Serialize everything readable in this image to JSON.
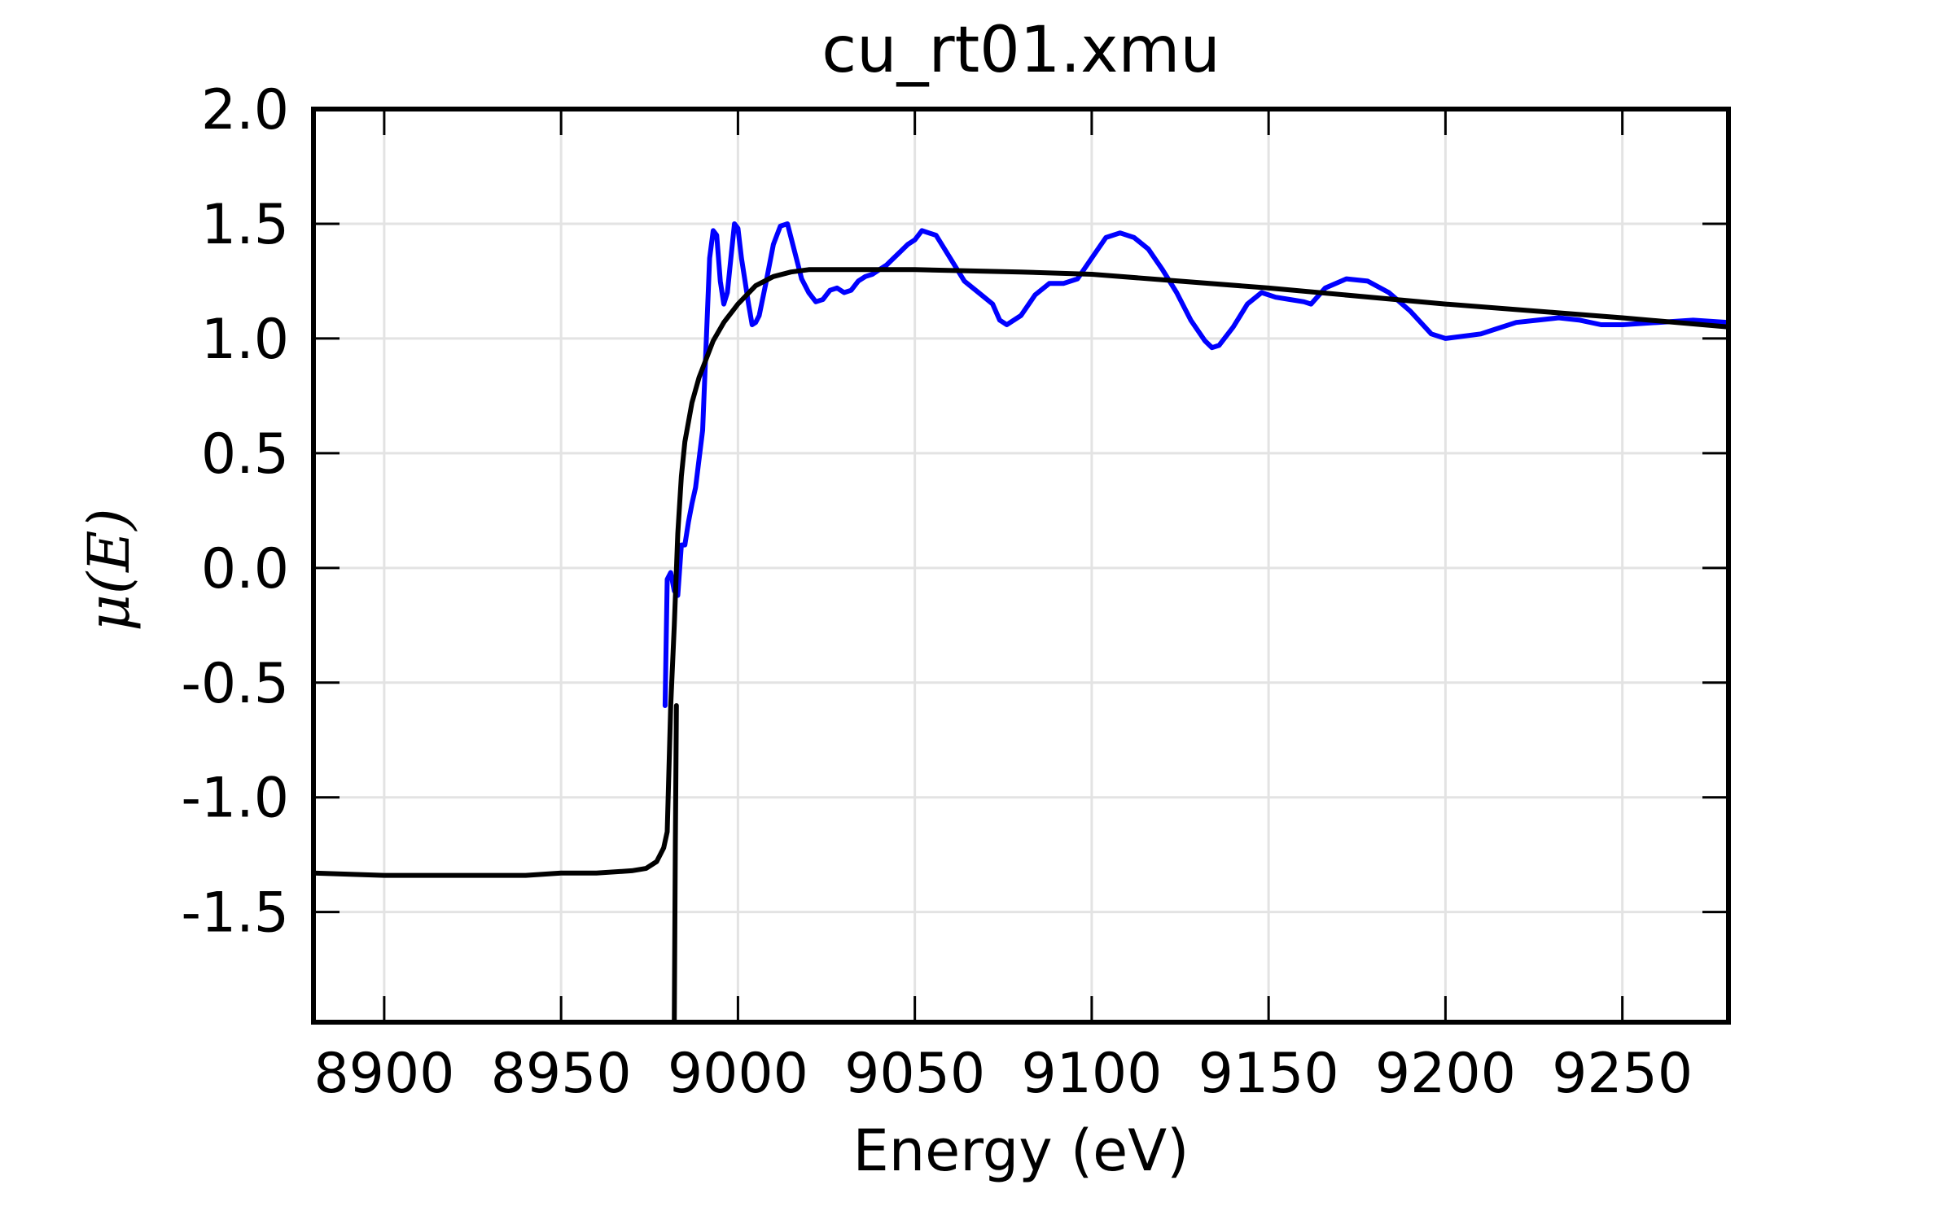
{
  "chart_data": {
    "type": "line",
    "title": "cu_rt01.xmu",
    "xlabel": "Energy (eV)",
    "ylabel": "μ(E)",
    "xlim": [
      8880,
      9280
    ],
    "ylim": [
      -1.98,
      2.0
    ],
    "xticks": [
      8900,
      8950,
      9000,
      9050,
      9100,
      9150,
      9200,
      9250
    ],
    "xtick_labels": [
      "8900",
      "8950",
      "9000",
      "9050",
      "9100",
      "9150",
      "9200",
      "9250"
    ],
    "yticks": [
      2.0,
      1.5,
      1.0,
      0.5,
      0.0,
      -0.5,
      -1.0,
      -1.5
    ],
    "ytick_labels": [
      "2.0",
      "1.5",
      "1.0",
      "0.5",
      "0.0",
      "-0.5",
      "-1.0",
      "-1.5"
    ],
    "grid": true,
    "series": [
      {
        "color": "#0000ff",
        "x": [
          8979.4,
          8980.0,
          8981.0,
          8982.0,
          8983.0,
          8984.0,
          8985.0,
          8986.0,
          8987.0,
          8988.0,
          8990.0,
          8992.0,
          8993.0,
          8994.0,
          8995.0,
          8996.0,
          8997.0,
          8998.0,
          8999.0,
          9000.0,
          9001.0,
          9002.0,
          9003.0,
          9004.0,
          9005.0,
          9006.0,
          9008.0,
          9010.0,
          9012.0,
          9014.0,
          9016.0,
          9018.0,
          9020.0,
          9022.0,
          9024.0,
          9026.0,
          9028.0,
          9030.0,
          9032.0,
          9034.0,
          9036.0,
          9038.0,
          9040.0,
          9042.0,
          9044.0,
          9046.0,
          9048.0,
          9050.0,
          9052.0,
          9056.0,
          9060.0,
          9064.0,
          9068.0,
          9072.0,
          9074.0,
          9076.0,
          9080.0,
          9084.0,
          9088.0,
          9092.0,
          9096.0,
          9100.0,
          9104.0,
          9108.0,
          9112.0,
          9116.0,
          9120.0,
          9124.0,
          9128.0,
          9132.0,
          9134.0,
          9136.0,
          9140.0,
          9144.0,
          9148.0,
          9152.0,
          9156.0,
          9160.0,
          9162.0,
          9166.0,
          9172.0,
          9178.0,
          9184.0,
          9190.0,
          9196.0,
          9200.0,
          9205.0,
          9210.0,
          9214.0,
          9220.0,
          9226.0,
          9232.0,
          9238.0,
          9244.0,
          9250.0,
          9260.0,
          9270.0,
          9280.0
        ],
        "y": [
          -0.6,
          -0.05,
          -0.02,
          -0.1,
          -0.12,
          0.1,
          0.1,
          0.2,
          0.28,
          0.35,
          0.6,
          1.35,
          1.47,
          1.45,
          1.25,
          1.15,
          1.2,
          1.35,
          1.5,
          1.48,
          1.35,
          1.25,
          1.15,
          1.06,
          1.07,
          1.1,
          1.25,
          1.41,
          1.49,
          1.5,
          1.38,
          1.26,
          1.2,
          1.16,
          1.17,
          1.21,
          1.22,
          1.2,
          1.21,
          1.25,
          1.27,
          1.28,
          1.3,
          1.32,
          1.35,
          1.38,
          1.41,
          1.43,
          1.47,
          1.45,
          1.35,
          1.25,
          1.2,
          1.15,
          1.08,
          1.06,
          1.1,
          1.19,
          1.24,
          1.24,
          1.26,
          1.35,
          1.44,
          1.46,
          1.44,
          1.39,
          1.3,
          1.2,
          1.08,
          0.99,
          0.96,
          0.97,
          1.05,
          1.15,
          1.2,
          1.18,
          1.17,
          1.16,
          1.15,
          1.22,
          1.26,
          1.25,
          1.2,
          1.12,
          1.02,
          1.0,
          1.01,
          1.02,
          1.04,
          1.07,
          1.08,
          1.09,
          1.08,
          1.06,
          1.06,
          1.07,
          1.08,
          1.07
        ]
      },
      {
        "color": "#000000",
        "x": [
          8880.0,
          8900.0,
          8920.0,
          8940.0,
          8950.0,
          8960.0,
          8970.0,
          8974.0,
          8977.0,
          8979.0,
          8980.0,
          8981.0,
          8982.0,
          8983.0,
          8984.0,
          8985.0,
          8987.0,
          8989.0,
          8991.0,
          8993.0,
          8996.0,
          9000.0,
          9005.0,
          9010.0,
          9015.0,
          9020.0,
          9030.0,
          9050.0,
          9080.0,
          9100.0,
          9150.0,
          9200.0,
          9250.0,
          9280.0
        ],
        "y": [
          -1.33,
          -1.34,
          -1.34,
          -1.34,
          -1.33,
          -1.33,
          -1.32,
          -1.31,
          -1.28,
          -1.22,
          -1.15,
          -0.6,
          -0.25,
          0.15,
          0.4,
          0.55,
          0.72,
          0.83,
          0.91,
          0.99,
          1.07,
          1.15,
          1.23,
          1.27,
          1.29,
          1.3,
          1.3,
          1.3,
          1.29,
          1.28,
          1.22,
          1.15,
          1.09,
          1.05
        ]
      },
      {
        "color": "#000000",
        "x": [
          8982.0,
          8982.3,
          8982.6
        ],
        "y": [
          -1.98,
          -1.2,
          -0.6
        ]
      }
    ]
  }
}
